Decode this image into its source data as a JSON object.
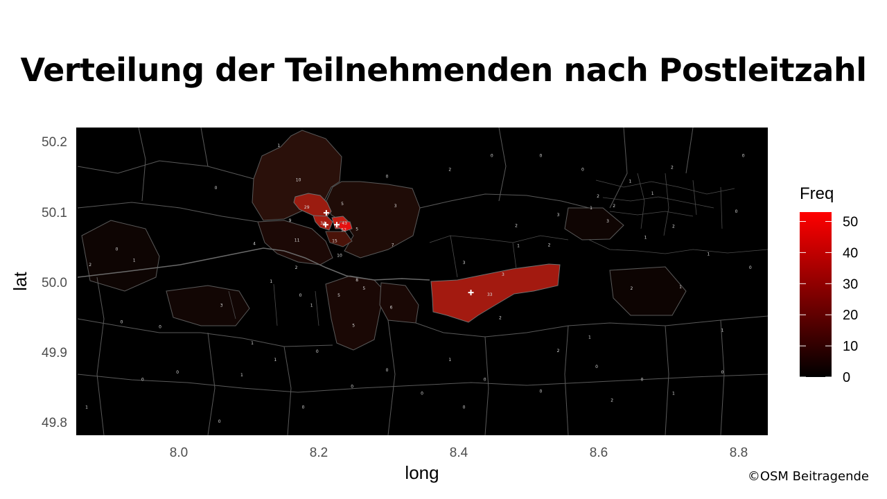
{
  "title": "Verteilung der Teilnehmenden nach Postleitzahl",
  "attribution": "©OSM Beitragende",
  "chart_data": {
    "type": "choropleth",
    "xlabel": "long",
    "ylabel": "lat",
    "xlim": [
      7.855,
      8.845
    ],
    "ylim": [
      49.78,
      50.22
    ],
    "x_ticks": [
      8.0,
      8.2,
      8.4,
      8.6,
      8.8
    ],
    "y_ticks": [
      49.8,
      49.9,
      50.0,
      50.1,
      50.2
    ],
    "x_tick_labels": [
      "8.0",
      "8.2",
      "8.4",
      "8.6",
      "8.8"
    ],
    "y_tick_labels": [
      "49.8",
      "49.9",
      "50.0",
      "50.1",
      "50.2"
    ],
    "legend": {
      "title": "Freq",
      "position": "right",
      "range": [
        0,
        53
      ],
      "ticks": [
        0,
        10,
        20,
        30,
        40,
        50
      ],
      "tick_labels": [
        "0",
        "10",
        "20",
        "30",
        "40",
        "50"
      ],
      "color_low": "#000000",
      "color_high": "#ff0000"
    },
    "colors": {
      "background": "#000000",
      "boundary": "#5a5a5a",
      "marker": "#ffffff"
    },
    "regions": [
      {
        "lon": 8.173,
        "lat": 50.145,
        "freq": 10,
        "label": "10"
      },
      {
        "lon": 8.185,
        "lat": 50.106,
        "freq": 29,
        "label": "29"
      },
      {
        "lon": 8.208,
        "lat": 50.083,
        "freq": 34,
        "label": "34"
      },
      {
        "lon": 8.239,
        "lat": 50.083,
        "freq": 43,
        "label": "43"
      },
      {
        "lon": 8.238,
        "lat": 50.074,
        "freq": 52,
        "label": "52"
      },
      {
        "lon": 8.225,
        "lat": 50.058,
        "freq": 15,
        "label": "15"
      },
      {
        "lon": 8.161,
        "lat": 50.087,
        "freq": 9,
        "label": "9"
      },
      {
        "lon": 8.171,
        "lat": 50.059,
        "freq": 11,
        "label": "11"
      },
      {
        "lon": 8.232,
        "lat": 50.037,
        "freq": 10,
        "label": "10"
      },
      {
        "lon": 8.236,
        "lat": 50.111,
        "freq": 5,
        "label": "5"
      },
      {
        "lon": 8.257,
        "lat": 50.075,
        "freq": 5,
        "label": "5"
      },
      {
        "lon": 8.312,
        "lat": 50.108,
        "freq": 3,
        "label": "3"
      },
      {
        "lon": 8.308,
        "lat": 50.052,
        "freq": 7,
        "label": "7"
      },
      {
        "lon": 8.447,
        "lat": 49.981,
        "freq": 33,
        "label": "33"
      },
      {
        "lon": 8.41,
        "lat": 50.027,
        "freq": 3,
        "label": "3"
      },
      {
        "lon": 8.466,
        "lat": 50.01,
        "freq": 3,
        "label": "3"
      },
      {
        "lon": 8.462,
        "lat": 49.948,
        "freq": 2,
        "label": "2"
      },
      {
        "lon": 8.252,
        "lat": 49.937,
        "freq": 5,
        "label": "5"
      },
      {
        "lon": 8.306,
        "lat": 49.963,
        "freq": 6,
        "label": "6"
      },
      {
        "lon": 8.257,
        "lat": 50.002,
        "freq": 8,
        "label": "8"
      },
      {
        "lon": 8.267,
        "lat": 49.99,
        "freq": 5,
        "label": "5"
      },
      {
        "lon": 8.231,
        "lat": 49.98,
        "freq": 5,
        "label": "5"
      },
      {
        "lon": 8.063,
        "lat": 49.966,
        "freq": 3,
        "label": "3"
      },
      {
        "lon": 8.11,
        "lat": 50.054,
        "freq": 4,
        "label": "4"
      },
      {
        "lon": 8.17,
        "lat": 50.02,
        "freq": 2,
        "label": "2"
      },
      {
        "lon": 8.134,
        "lat": 50.0,
        "freq": 1,
        "label": "1"
      },
      {
        "lon": 8.192,
        "lat": 49.966,
        "freq": 1,
        "label": "1"
      },
      {
        "lon": 8.176,
        "lat": 49.98,
        "freq": 0,
        "label": "0"
      },
      {
        "lon": 7.875,
        "lat": 50.024,
        "freq": 2,
        "label": "2"
      },
      {
        "lon": 7.938,
        "lat": 50.03,
        "freq": 1,
        "label": "1"
      },
      {
        "lon": 7.913,
        "lat": 50.046,
        "freq": 0,
        "label": "0"
      },
      {
        "lon": 7.92,
        "lat": 49.942,
        "freq": 0,
        "label": "0"
      },
      {
        "lon": 7.975,
        "lat": 49.935,
        "freq": 0,
        "label": "0"
      },
      {
        "lon": 8.107,
        "lat": 49.912,
        "freq": 1,
        "label": "1"
      },
      {
        "lon": 8.092,
        "lat": 49.866,
        "freq": 1,
        "label": "1"
      },
      {
        "lon": 8.14,
        "lat": 49.888,
        "freq": 1,
        "label": "1"
      },
      {
        "lon": 8.145,
        "lat": 50.194,
        "freq": 1,
        "label": "1"
      },
      {
        "lon": 8.055,
        "lat": 50.134,
        "freq": 0,
        "label": "0"
      },
      {
        "lon": 8.39,
        "lat": 49.888,
        "freq": 1,
        "label": "1"
      },
      {
        "lon": 8.545,
        "lat": 49.901,
        "freq": 2,
        "label": "2"
      },
      {
        "lon": 8.59,
        "lat": 49.92,
        "freq": 1,
        "label": "1"
      },
      {
        "lon": 8.616,
        "lat": 50.086,
        "freq": 3,
        "label": "3"
      },
      {
        "lon": 8.545,
        "lat": 50.095,
        "freq": 3,
        "label": "3"
      },
      {
        "lon": 8.532,
        "lat": 50.052,
        "freq": 2,
        "label": "2"
      },
      {
        "lon": 8.485,
        "lat": 50.08,
        "freq": 2,
        "label": "2"
      },
      {
        "lon": 8.488,
        "lat": 50.051,
        "freq": 1,
        "label": "1"
      },
      {
        "lon": 8.67,
        "lat": 50.063,
        "freq": 1,
        "label": "1"
      },
      {
        "lon": 8.65,
        "lat": 49.99,
        "freq": 2,
        "label": "2"
      },
      {
        "lon": 8.71,
        "lat": 50.079,
        "freq": 2,
        "label": "2"
      },
      {
        "lon": 8.72,
        "lat": 49.992,
        "freq": 1,
        "label": "1"
      },
      {
        "lon": 8.76,
        "lat": 50.039,
        "freq": 1,
        "label": "1"
      },
      {
        "lon": 8.625,
        "lat": 50.108,
        "freq": 2,
        "label": "2"
      },
      {
        "lon": 8.68,
        "lat": 50.126,
        "freq": 1,
        "label": "1"
      },
      {
        "lon": 8.648,
        "lat": 50.143,
        "freq": 1,
        "label": "1"
      },
      {
        "lon": 8.602,
        "lat": 50.122,
        "freq": 2,
        "label": "2"
      },
      {
        "lon": 8.708,
        "lat": 50.163,
        "freq": 2,
        "label": "2"
      },
      {
        "lon": 8.592,
        "lat": 50.105,
        "freq": 1,
        "label": "1"
      },
      {
        "lon": 8.6,
        "lat": 49.878,
        "freq": 0,
        "label": "0"
      },
      {
        "lon": 8.52,
        "lat": 49.843,
        "freq": 0,
        "label": "0"
      },
      {
        "lon": 8.622,
        "lat": 49.83,
        "freq": 2,
        "label": "2"
      },
      {
        "lon": 8.665,
        "lat": 49.86,
        "freq": 0,
        "label": "0"
      },
      {
        "lon": 8.71,
        "lat": 49.84,
        "freq": 1,
        "label": "1"
      },
      {
        "lon": 8.78,
        "lat": 49.87,
        "freq": 0,
        "label": "0"
      },
      {
        "lon": 8.41,
        "lat": 49.82,
        "freq": 0,
        "label": "0"
      },
      {
        "lon": 8.35,
        "lat": 49.84,
        "freq": 0,
        "label": "0"
      },
      {
        "lon": 8.3,
        "lat": 49.873,
        "freq": 0,
        "label": "0"
      },
      {
        "lon": 8.2,
        "lat": 49.9,
        "freq": 0,
        "label": "0"
      },
      {
        "lon": 8.0,
        "lat": 49.87,
        "freq": 0,
        "label": "0"
      },
      {
        "lon": 7.95,
        "lat": 49.86,
        "freq": 0,
        "label": "0"
      },
      {
        "lon": 7.87,
        "lat": 49.82,
        "freq": 1,
        "label": "1"
      },
      {
        "lon": 8.3,
        "lat": 50.15,
        "freq": 0,
        "label": "0"
      },
      {
        "lon": 8.39,
        "lat": 50.16,
        "freq": 2,
        "label": "2"
      },
      {
        "lon": 8.45,
        "lat": 50.18,
        "freq": 0,
        "label": "0"
      },
      {
        "lon": 8.52,
        "lat": 50.18,
        "freq": 0,
        "label": "0"
      },
      {
        "lon": 8.58,
        "lat": 50.16,
        "freq": 0,
        "label": "0"
      },
      {
        "lon": 8.81,
        "lat": 50.18,
        "freq": 0,
        "label": "0"
      },
      {
        "lon": 8.8,
        "lat": 50.1,
        "freq": 0,
        "label": "0"
      },
      {
        "lon": 8.82,
        "lat": 50.02,
        "freq": 0,
        "label": "0"
      },
      {
        "lon": 8.78,
        "lat": 49.93,
        "freq": 1,
        "label": "1"
      },
      {
        "lon": 8.44,
        "lat": 49.86,
        "freq": 0,
        "label": "0"
      },
      {
        "lon": 8.06,
        "lat": 49.8,
        "freq": 0,
        "label": "0"
      },
      {
        "lon": 8.18,
        "lat": 49.82,
        "freq": 0,
        "label": "0"
      },
      {
        "lon": 8.25,
        "lat": 49.85,
        "freq": 0,
        "label": "0"
      }
    ],
    "markers": [
      {
        "lon": 8.213,
        "lat": 50.098
      },
      {
        "lon": 8.212,
        "lat": 50.081
      },
      {
        "lon": 8.228,
        "lat": 50.081
      },
      {
        "lon": 8.42,
        "lat": 49.984
      }
    ]
  }
}
